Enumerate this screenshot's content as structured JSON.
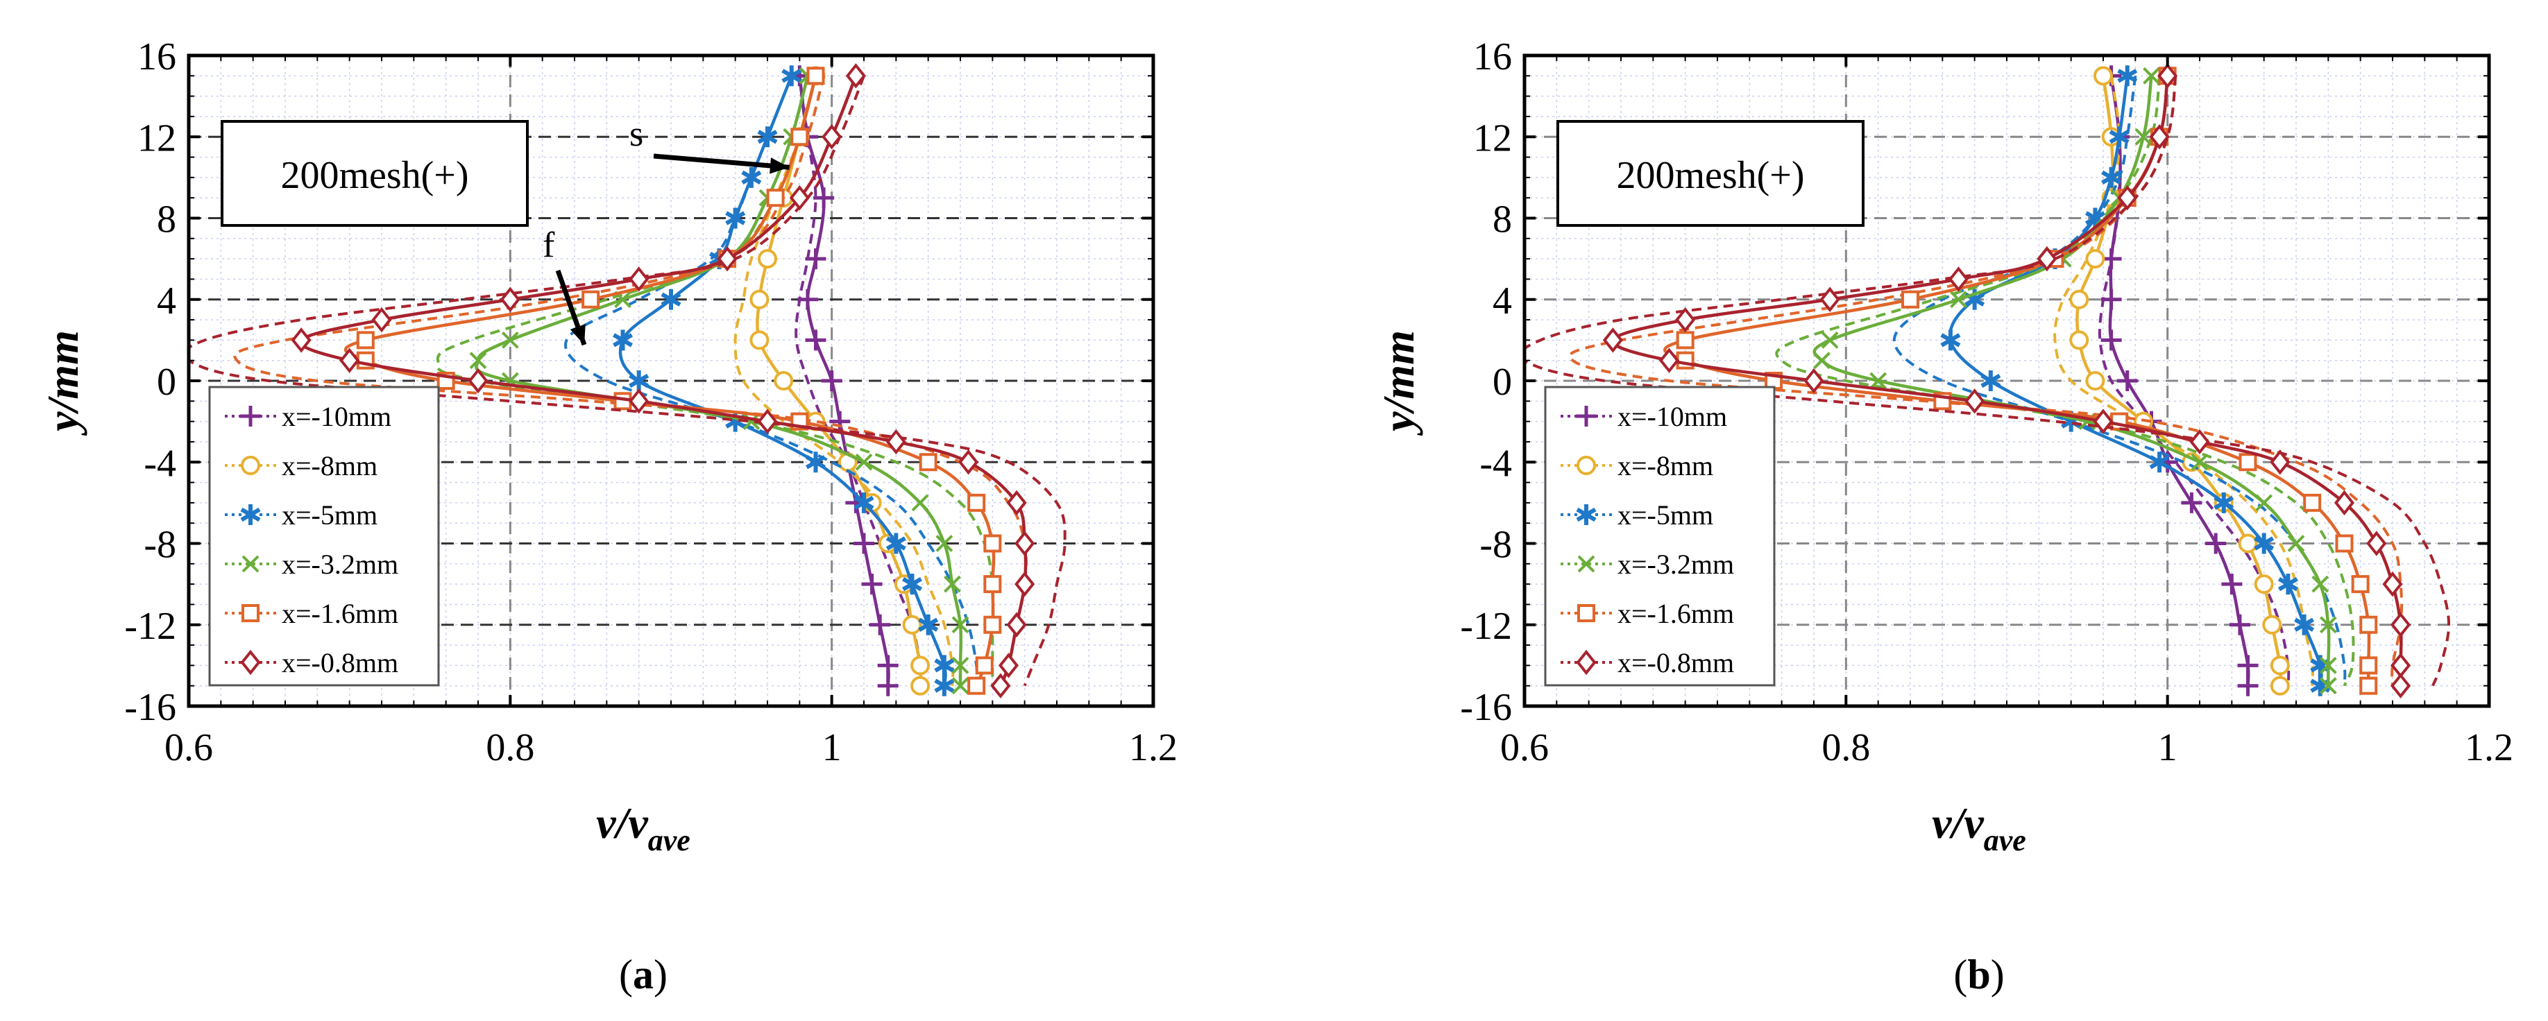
{
  "chart_data": [
    {
      "type": "line",
      "panel_label": "(a)",
      "box_label": "200mesh(+)",
      "xlabel": "v/v",
      "xlabel_sub": "ave",
      "ylabel": "y/mm",
      "xlim": [
        0.6,
        1.2
      ],
      "ylim": [
        -16,
        16
      ],
      "xticks": [
        "0.6",
        "0.8",
        "1",
        "1.2"
      ],
      "yticks": [
        "-16",
        "-12",
        "-8",
        "-4",
        "0",
        "4",
        "8",
        "12",
        "16"
      ],
      "grid": true,
      "legend_position": "bottom-left",
      "annotations": [
        {
          "text": "s",
          "x": 0.965,
          "y": 10.5
        },
        {
          "text": "f",
          "x": 0.84,
          "y": 1.5
        }
      ],
      "series": [
        {
          "name": "x=-10mm",
          "color": "#7B2D8E",
          "marker": "plus",
          "y": [
            15,
            12,
            9,
            6,
            4,
            2,
            0,
            -2,
            -4,
            -6,
            -8,
            -10,
            -12,
            -14,
            -15
          ],
          "x": [
            0.98,
            0.985,
            0.995,
            0.99,
            0.985,
            0.99,
            1.0,
            1.005,
            1.01,
            1.015,
            1.02,
            1.025,
            1.03,
            1.035,
            1.035
          ],
          "model_x": [
            0.98,
            0.985,
            0.99,
            0.985,
            0.98,
            0.978,
            0.985,
            0.995,
            1.01,
            1.02,
            1.03,
            1.04,
            1.05,
            1.055,
            1.055
          ]
        },
        {
          "name": "x=-8mm",
          "color": "#E8B030",
          "marker": "circle",
          "y": [
            15,
            12,
            9,
            6,
            4,
            2,
            0,
            -2,
            -4,
            -6,
            -8,
            -10,
            -12,
            -14,
            -15
          ],
          "x": [
            0.99,
            0.98,
            0.97,
            0.96,
            0.955,
            0.955,
            0.97,
            0.99,
            1.01,
            1.025,
            1.035,
            1.045,
            1.05,
            1.055,
            1.055
          ],
          "model_x": [
            0.99,
            0.98,
            0.965,
            0.95,
            0.945,
            0.94,
            0.945,
            0.97,
            1.005,
            1.03,
            1.05,
            1.06,
            1.07,
            1.075,
            1.075
          ]
        },
        {
          "name": "x=-5mm",
          "color": "#1F78C8",
          "marker": "asterisk",
          "y": [
            15,
            12,
            10,
            8,
            6,
            4,
            2,
            0,
            -2,
            -4,
            -6,
            -8,
            -10,
            -12,
            -14,
            -15
          ],
          "x": [
            0.975,
            0.96,
            0.95,
            0.94,
            0.93,
            0.9,
            0.87,
            0.88,
            0.94,
            0.99,
            1.02,
            1.04,
            1.05,
            1.06,
            1.07,
            1.07
          ],
          "model_x": [
            0.975,
            0.96,
            0.95,
            0.94,
            0.925,
            0.88,
            0.835,
            0.86,
            0.94,
            1.0,
            1.04,
            1.06,
            1.075,
            1.085,
            1.09,
            1.09
          ]
        },
        {
          "name": "x=-3.2mm",
          "color": "#6AAE3A",
          "marker": "cross",
          "y": [
            15,
            12,
            9,
            6,
            4,
            2,
            1,
            0,
            -2,
            -4,
            -6,
            -8,
            -10,
            -12,
            -14,
            -15
          ],
          "x": [
            0.985,
            0.975,
            0.96,
            0.935,
            0.87,
            0.8,
            0.78,
            0.8,
            0.95,
            1.02,
            1.055,
            1.07,
            1.075,
            1.08,
            1.08,
            1.08
          ],
          "model_x": [
            0.99,
            0.98,
            0.965,
            0.935,
            0.86,
            0.775,
            0.755,
            0.78,
            0.95,
            1.04,
            1.08,
            1.095,
            1.1,
            1.1,
            1.1,
            1.1
          ]
        },
        {
          "name": "x=-1.6mm",
          "color": "#E0652A",
          "marker": "square",
          "y": [
            15,
            12,
            9,
            6,
            4,
            2,
            1,
            0,
            -1,
            -2,
            -4,
            -6,
            -8,
            -10,
            -12,
            -14,
            -15
          ],
          "x": [
            0.99,
            0.98,
            0.965,
            0.935,
            0.85,
            0.71,
            0.71,
            0.76,
            0.87,
            0.98,
            1.06,
            1.09,
            1.1,
            1.1,
            1.1,
            1.095,
            1.09
          ],
          "model_x": [
            0.995,
            0.985,
            0.97,
            0.935,
            0.83,
            0.66,
            0.63,
            0.68,
            0.85,
            0.99,
            1.08,
            1.11,
            1.12,
            1.12,
            1.115,
            1.11,
            1.105
          ]
        },
        {
          "name": "x=-0.8mm",
          "color": "#A8232E",
          "marker": "diamond",
          "y": [
            15,
            12,
            9,
            6,
            5,
            4,
            3,
            2,
            1,
            0,
            -1,
            -2,
            -3,
            -4,
            -6,
            -8,
            -10,
            -12,
            -14,
            -15
          ],
          "x": [
            1.015,
            1.0,
            0.98,
            0.935,
            0.88,
            0.8,
            0.72,
            0.67,
            0.7,
            0.78,
            0.88,
            0.96,
            1.04,
            1.085,
            1.115,
            1.12,
            1.12,
            1.115,
            1.11,
            1.105
          ],
          "model_x": [
            1.02,
            1.005,
            0.985,
            0.94,
            0.87,
            0.77,
            0.67,
            0.61,
            0.6,
            0.65,
            0.8,
            0.95,
            1.06,
            1.11,
            1.14,
            1.145,
            1.14,
            1.135,
            1.125,
            1.12
          ]
        }
      ]
    },
    {
      "type": "line",
      "panel_label": "(b)",
      "box_label": "200mesh(+)",
      "xlabel": "v/v",
      "xlabel_sub": "ave",
      "ylabel": "y/mm",
      "xlim": [
        0.6,
        1.2
      ],
      "ylim": [
        -16,
        16
      ],
      "xticks": [
        "0.6",
        "0.8",
        "1",
        "1.2"
      ],
      "yticks": [
        "-16",
        "-12",
        "-8",
        "-4",
        "0",
        "4",
        "8",
        "12",
        "16"
      ],
      "grid": true,
      "legend_position": "bottom-left",
      "annotations": [],
      "series": [
        {
          "name": "x=-10mm",
          "color": "#7B2D8E",
          "marker": "plus",
          "y": [
            15,
            12,
            9,
            6,
            4,
            2,
            0,
            -2,
            -4,
            -6,
            -8,
            -10,
            -12,
            -14,
            -15
          ],
          "x": [
            0.965,
            0.97,
            0.97,
            0.965,
            0.965,
            0.965,
            0.975,
            0.99,
            1.0,
            1.015,
            1.03,
            1.04,
            1.045,
            1.05,
            1.05
          ],
          "model_x": [
            0.965,
            0.97,
            0.97,
            0.965,
            0.96,
            0.958,
            0.965,
            0.985,
            1.005,
            1.025,
            1.045,
            1.06,
            1.07,
            1.075,
            1.075
          ]
        },
        {
          "name": "x=-8mm",
          "color": "#E8B030",
          "marker": "circle",
          "y": [
            15,
            12,
            9,
            6,
            4,
            2,
            0,
            -2,
            -4,
            -6,
            -8,
            -10,
            -12,
            -14,
            -15
          ],
          "x": [
            0.96,
            0.965,
            0.965,
            0.955,
            0.945,
            0.945,
            0.955,
            0.985,
            1.015,
            1.035,
            1.05,
            1.06,
            1.065,
            1.07,
            1.07
          ],
          "model_x": [
            0.965,
            0.97,
            0.965,
            0.95,
            0.935,
            0.93,
            0.94,
            0.98,
            1.02,
            1.05,
            1.07,
            1.08,
            1.085,
            1.09,
            1.09
          ]
        },
        {
          "name": "x=-5mm",
          "color": "#1F78C8",
          "marker": "asterisk",
          "y": [
            15,
            12,
            10,
            8,
            6,
            4,
            2,
            0,
            -2,
            -4,
            -6,
            -8,
            -10,
            -12,
            -14,
            -15
          ],
          "x": [
            0.975,
            0.97,
            0.965,
            0.955,
            0.93,
            0.88,
            0.865,
            0.89,
            0.94,
            0.995,
            1.035,
            1.06,
            1.075,
            1.085,
            1.095,
            1.095
          ],
          "model_x": [
            0.98,
            0.975,
            0.97,
            0.955,
            0.925,
            0.86,
            0.83,
            0.86,
            0.94,
            1.01,
            1.055,
            1.08,
            1.095,
            1.105,
            1.11,
            1.11
          ]
        },
        {
          "name": "x=-3.2mm",
          "color": "#6AAE3A",
          "marker": "cross",
          "y": [
            15,
            12,
            9,
            6,
            4,
            2,
            1,
            0,
            -2,
            -4,
            -6,
            -8,
            -10,
            -12,
            -14,
            -15
          ],
          "x": [
            0.99,
            0.985,
            0.97,
            0.935,
            0.87,
            0.79,
            0.785,
            0.82,
            0.95,
            1.02,
            1.06,
            1.08,
            1.095,
            1.1,
            1.1,
            1.1
          ],
          "model_x": [
            0.995,
            0.99,
            0.97,
            0.93,
            0.855,
            0.77,
            0.76,
            0.8,
            0.95,
            1.035,
            1.08,
            1.1,
            1.11,
            1.115,
            1.115,
            1.11
          ]
        },
        {
          "name": "x=-1.6mm",
          "color": "#E0652A",
          "marker": "square",
          "y": [
            15,
            12,
            9,
            6,
            4,
            2,
            1,
            0,
            -1,
            -2,
            -4,
            -6,
            -8,
            -10,
            -12,
            -14,
            -15
          ],
          "x": [
            1.0,
            0.995,
            0.975,
            0.93,
            0.84,
            0.7,
            0.7,
            0.755,
            0.86,
            0.97,
            1.05,
            1.09,
            1.11,
            1.12,
            1.125,
            1.125,
            1.125
          ],
          "model_x": [
            1.005,
            1.0,
            0.98,
            0.93,
            0.82,
            0.66,
            0.63,
            0.69,
            0.85,
            0.99,
            1.08,
            1.12,
            1.14,
            1.145,
            1.145,
            1.14,
            1.14
          ]
        },
        {
          "name": "x=-0.8mm",
          "color": "#A8232E",
          "marker": "diamond",
          "y": [
            15,
            12,
            9,
            6,
            5,
            4,
            3,
            2,
            1,
            0,
            -1,
            -2,
            -3,
            -4,
            -6,
            -8,
            -10,
            -12,
            -14,
            -15
          ],
          "x": [
            1.0,
            0.995,
            0.975,
            0.925,
            0.87,
            0.79,
            0.7,
            0.655,
            0.69,
            0.78,
            0.88,
            0.96,
            1.02,
            1.07,
            1.11,
            1.13,
            1.14,
            1.145,
            1.145,
            1.145
          ],
          "model_x": [
            1.005,
            1.0,
            0.98,
            0.93,
            0.86,
            0.76,
            0.66,
            0.61,
            0.6,
            0.65,
            0.79,
            0.93,
            1.03,
            1.09,
            1.14,
            1.16,
            1.17,
            1.175,
            1.17,
            1.165
          ]
        }
      ]
    }
  ]
}
